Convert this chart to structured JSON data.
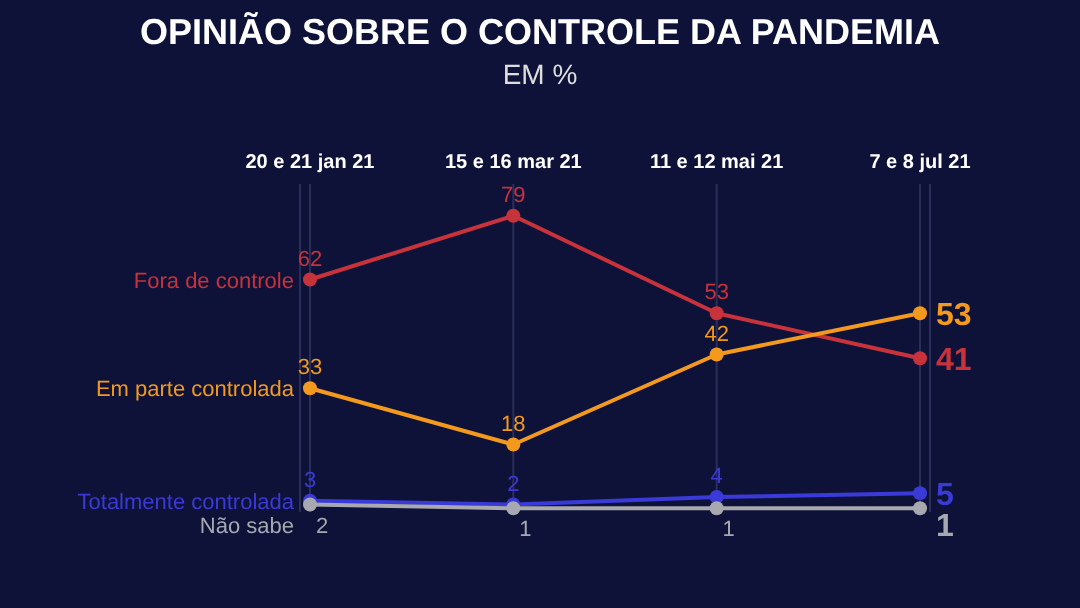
{
  "chart_data": {
    "type": "line",
    "title": "OPINIÃO SOBRE O CONTROLE DA PANDEMIA",
    "subtitle": "EM %",
    "categories": [
      "20 e 21 jan 21",
      "15 e 16 mar 21",
      "11 e 12 mai 21",
      "7 e 8 jul 21"
    ],
    "series": [
      {
        "name": "Fora de controle",
        "color": "#c8323a",
        "values": [
          62,
          79,
          53,
          41
        ]
      },
      {
        "name": "Em parte controlada",
        "color": "#f39a1e",
        "values": [
          33,
          18,
          42,
          53
        ]
      },
      {
        "name": "Totalmente controlada",
        "color": "#3a3ad8",
        "values": [
          3,
          2,
          4,
          5
        ]
      },
      {
        "name": "Não sabe",
        "color": "#a8a8b0",
        "values": [
          2,
          1,
          1,
          1
        ]
      }
    ],
    "data_labels": true,
    "grid": "x",
    "legend": false,
    "marker": "circle",
    "line_style": "solid"
  }
}
